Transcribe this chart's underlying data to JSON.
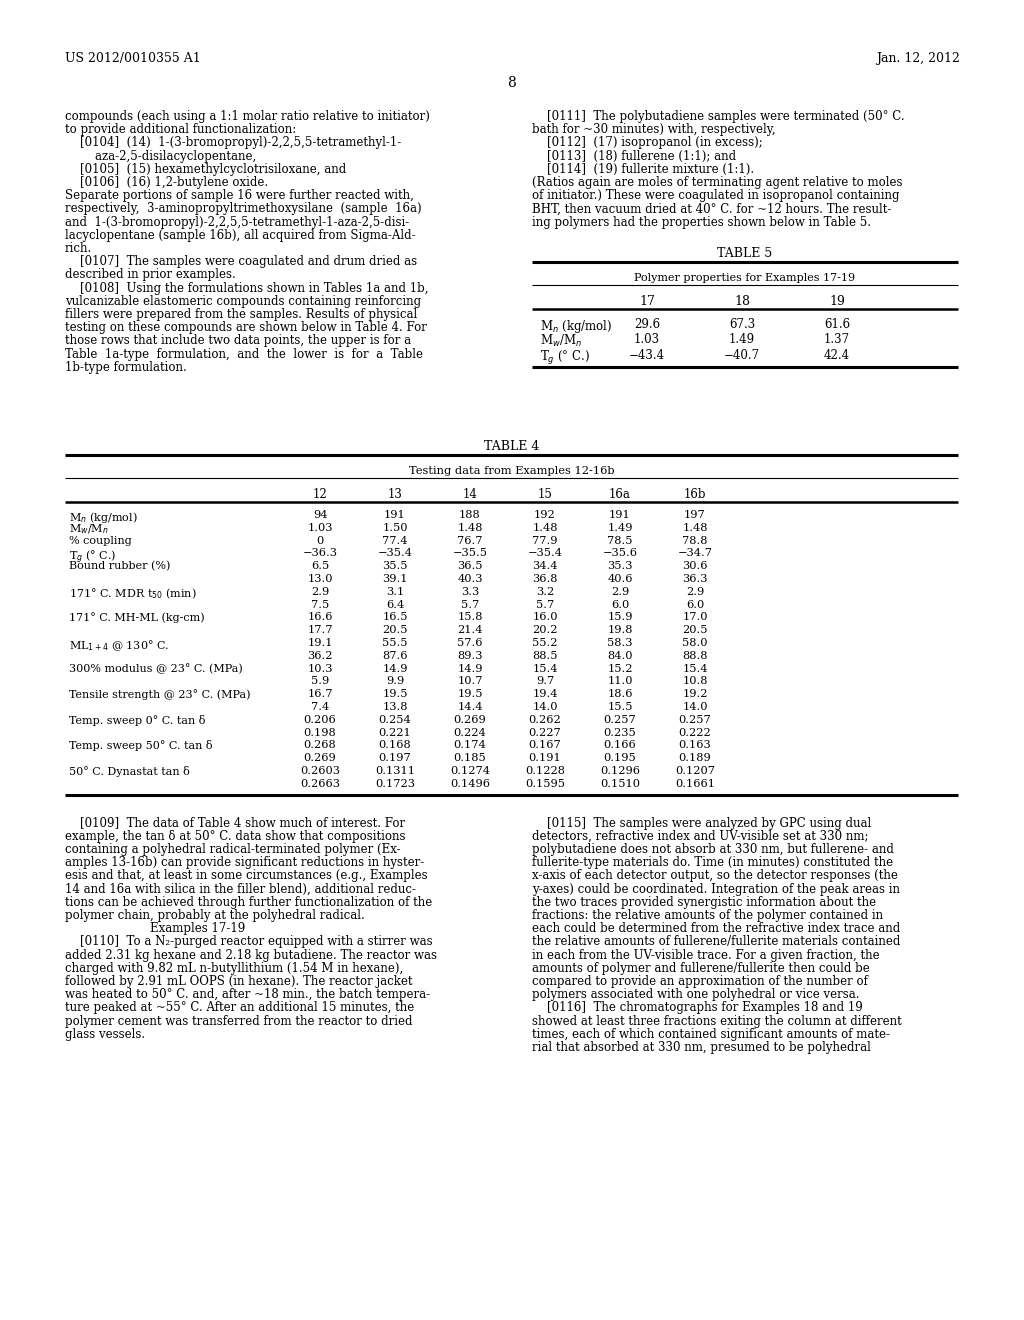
{
  "bg_color": "#ffffff",
  "header_left": "US 2012/0010355 A1",
  "header_right": "Jan. 12, 2012",
  "page_number": "8",
  "left_col_text": [
    "compounds (each using a 1:1 molar ratio relative to initiator)",
    "to provide additional functionalization:",
    "    [0104]  (14)  1-(3-bromopropyl)-2,2,5,5-tetramethyl-1-",
    "        aza-2,5-disilacyclopentane,",
    "    [0105]  (15) hexamethylcyclotrisiloxane, and",
    "    [0106]  (16) 1,2-butylene oxide.",
    "Separate portions of sample 16 were further reacted with,",
    "respectively,  3-aminopropyltrimethoxysilane  (sample  16a)",
    "and  1-(3-bromopropyl)-2,2,5,5-tetramethyl-1-aza-2,5-disi-",
    "lacyclopentane (sample 16b), all acquired from Sigma-Ald-",
    "rich.",
    "    [0107]  The samples were coagulated and drum dried as",
    "described in prior examples.",
    "    [0108]  Using the formulations shown in Tables 1a and 1b,",
    "vulcanizable elastomeric compounds containing reinforcing",
    "fillers were prepared from the samples. Results of physical",
    "testing on these compounds are shown below in Table 4. For",
    "those rows that include two data points, the upper is for a",
    "Table  1a-type  formulation,  and  the  lower  is  for  a  Table",
    "1b-type formulation."
  ],
  "right_col_text_top": [
    "    [0111]  The polybutadiene samples were terminated (50° C.",
    "bath for ~30 minutes) with, respectively,",
    "    [0112]  (17) isopropanol (in excess);",
    "    [0113]  (18) fullerene (1:1); and",
    "    [0114]  (19) fullerite mixture (1:1).",
    "(Ratios again are moles of terminating agent relative to moles",
    "of initiator.) These were coagulated in isopropanol containing",
    "BHT, then vacuum dried at 40° C. for ~12 hours. The result-",
    "ing polymers had the properties shown below in Table 5."
  ],
  "table5_title": "TABLE 5",
  "table5_subtitle": "Polymer properties for Examples 17-19",
  "table5_row_labels": [
    "Mn (kg/mol)",
    "Mw/Mn",
    "Tg (C)"
  ],
  "table5_row_labels_rendered": [
    "M$_n$ (kg/mol)",
    "M$_w$/M$_n$",
    "T$_g$ (° C.)"
  ],
  "table5_cols": [
    "17",
    "18",
    "19"
  ],
  "table5_data": [
    [
      "29.6",
      "67.3",
      "61.6"
    ],
    [
      "1.03",
      "1.49",
      "1.37"
    ],
    [
      "−43.4",
      "−40.7",
      "42.4"
    ]
  ],
  "table4_title": "TABLE 4",
  "table4_subtitle": "Testing data from Examples 12-16b",
  "table4_cols": [
    "12",
    "13",
    "14",
    "15",
    "16a",
    "16b"
  ],
  "table4_row_labels": [
    "Mn (kg/mol)",
    "Mw/Mn",
    "% coupling",
    "Tg (C)",
    "Bound rubber (%)",
    "",
    "171 MDR t50 (min)",
    "",
    "171 MH-ML (kg-cm)",
    "",
    "ML1+4 @ 130 C.",
    "",
    "300% modulus @ 23 C. (MPa)",
    "",
    "Tensile strength @ 23 C. (MPa)",
    "",
    "Temp. sweep 0 C. tan d",
    "",
    "Temp. sweep 50 C. tan d",
    "",
    "50 C. Dynastat tan d",
    ""
  ],
  "table4_row_labels_rendered": [
    "M$_n$ (kg/mol)",
    "M$_w$/M$_n$",
    "% coupling",
    "T$_g$ (° C.)",
    "Bound rubber (%)",
    "",
    "171° C. MDR t$_{50}$ (min)",
    "",
    "171° C. MH-ML (kg-cm)",
    "",
    "ML$_{1+4}$ @ 130° C.",
    "",
    "300% modulus @ 23° C. (MPa)",
    "",
    "Tensile strength @ 23° C. (MPa)",
    "",
    "Temp. sweep 0° C. tan δ",
    "",
    "Temp. sweep 50° C. tan δ",
    "",
    "50° C. Dynastat tan δ",
    ""
  ],
  "table4_data": [
    [
      "94",
      "191",
      "188",
      "192",
      "191",
      "197"
    ],
    [
      "1.03",
      "1.50",
      "1.48",
      "1.48",
      "1.49",
      "1.48"
    ],
    [
      "0",
      "77.4",
      "76.7",
      "77.9",
      "78.5",
      "78.8"
    ],
    [
      "−36.3",
      "−35.4",
      "−35.5",
      "−35.4",
      "−35.6",
      "−34.7"
    ],
    [
      "6.5",
      "35.5",
      "36.5",
      "34.4",
      "35.3",
      "30.6"
    ],
    [
      "13.0",
      "39.1",
      "40.3",
      "36.8",
      "40.6",
      "36.3"
    ],
    [
      "2.9",
      "3.1",
      "3.3",
      "3.2",
      "2.9",
      "2.9"
    ],
    [
      "7.5",
      "6.4",
      "5.7",
      "5.7",
      "6.0",
      "6.0"
    ],
    [
      "16.6",
      "16.5",
      "15.8",
      "16.0",
      "15.9",
      "17.0"
    ],
    [
      "17.7",
      "20.5",
      "21.4",
      "20.2",
      "19.8",
      "20.5"
    ],
    [
      "19.1",
      "55.5",
      "57.6",
      "55.2",
      "58.3",
      "58.0"
    ],
    [
      "36.2",
      "87.6",
      "89.3",
      "88.5",
      "84.0",
      "88.8"
    ],
    [
      "10.3",
      "14.9",
      "14.9",
      "15.4",
      "15.2",
      "15.4"
    ],
    [
      "5.9",
      "9.9",
      "10.7",
      "9.7",
      "11.0",
      "10.8"
    ],
    [
      "16.7",
      "19.5",
      "19.5",
      "19.4",
      "18.6",
      "19.2"
    ],
    [
      "7.4",
      "13.8",
      "14.4",
      "14.0",
      "15.5",
      "14.0"
    ],
    [
      "0.206",
      "0.254",
      "0.269",
      "0.262",
      "0.257",
      "0.257"
    ],
    [
      "0.198",
      "0.221",
      "0.224",
      "0.227",
      "0.235",
      "0.222"
    ],
    [
      "0.268",
      "0.168",
      "0.174",
      "0.167",
      "0.166",
      "0.163"
    ],
    [
      "0.269",
      "0.197",
      "0.185",
      "0.191",
      "0.195",
      "0.189"
    ],
    [
      "0.2603",
      "0.1311",
      "0.1274",
      "0.1228",
      "0.1296",
      "0.1207"
    ],
    [
      "0.2663",
      "0.1723",
      "0.1496",
      "0.1595",
      "0.1510",
      "0.1661"
    ]
  ],
  "bottom_left_text": [
    "    [0109]  The data of Table 4 show much of interest. For",
    "example, the tan δ at 50° C. data show that compositions",
    "containing a polyhedral radical-terminated polymer (Ex-",
    "amples 13-16b) can provide significant reductions in hyster-",
    "esis and that, at least in some circumstances (e.g., Examples",
    "14 and 16a with silica in the filler blend), additional reduc-",
    "tions can be achieved through further functionalization of the",
    "polymer chain, probably at the polyhedral radical.",
    "Examples 17-19",
    "    [0110]  To a N₂-purged reactor equipped with a stirrer was",
    "added 2.31 kg hexane and 2.18 kg butadiene. The reactor was",
    "charged with 9.82 mL n-butyllithium (1.54 M in hexane),",
    "followed by 2.91 mL OOPS (in hexane). The reactor jacket",
    "was heated to 50° C. and, after ~18 min., the batch tempera-",
    "ture peaked at ~55° C. After an additional 15 minutes, the",
    "polymer cement was transferred from the reactor to dried",
    "glass vessels."
  ],
  "bottom_right_text": [
    "    [0115]  The samples were analyzed by GPC using dual",
    "detectors, refractive index and UV-visible set at 330 nm;",
    "polybutadiene does not absorb at 330 nm, but fullerene- and",
    "fullerite-type materials do. Time (in minutes) constituted the",
    "x-axis of each detector output, so the detector responses (the",
    "y-axes) could be coordinated. Integration of the peak areas in",
    "the two traces provided synergistic information about the",
    "fractions: the relative amounts of the polymer contained in",
    "each could be determined from the refractive index trace and",
    "the relative amounts of fullerene/fullerite materials contained",
    "in each from the UV-visible trace. For a given fraction, the",
    "amounts of polymer and fullerene/fullerite then could be",
    "compared to provide an approximation of the number of",
    "polymers associated with one polyhedral or vice versa.",
    "    [0116]  The chromatographs for Examples 18 and 19",
    "showed at least three fractions exiting the column at different",
    "times, each of which contained significant amounts of mate-",
    "rial that absorbed at 330 nm, presumed to be polyhedral"
  ]
}
